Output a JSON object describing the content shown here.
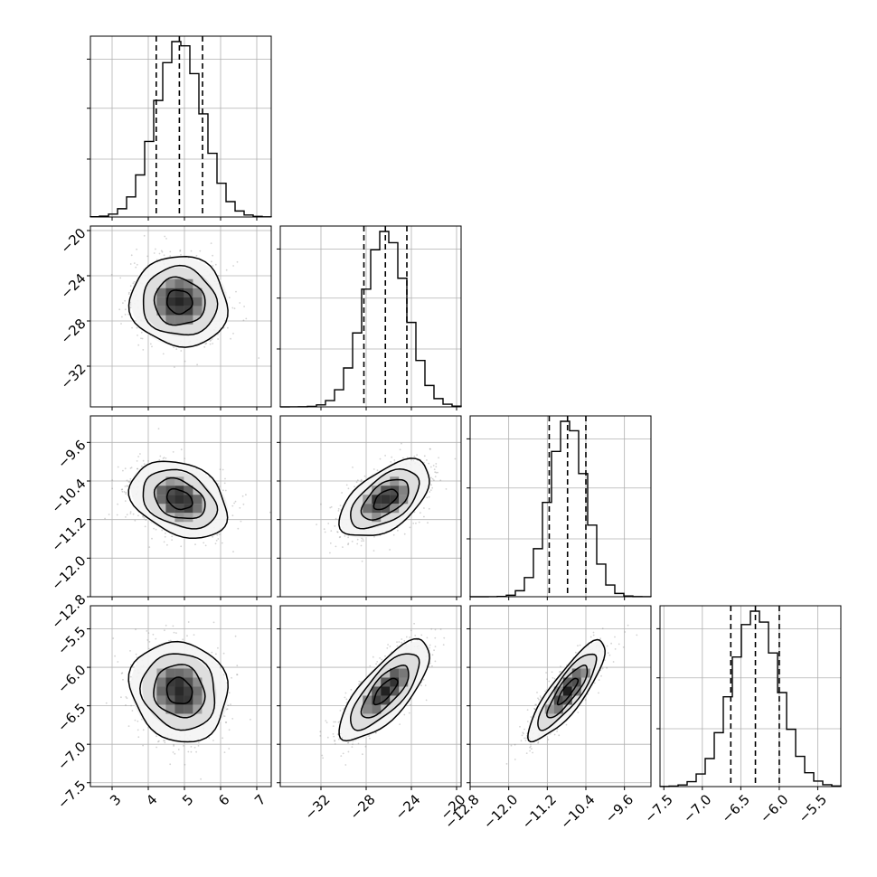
{
  "chart_data": {
    "type": "corner",
    "description_free": true,
    "grid": true,
    "parameters": [
      {
        "ticks": [
          3,
          4,
          5,
          6,
          7
        ],
        "tick_labels": [
          "3",
          "4",
          "5",
          "6",
          "7"
        ],
        "range": [
          2.4,
          7.4
        ],
        "quantiles": [
          4.22,
          4.86,
          5.5
        ],
        "mean": 4.86,
        "sd": 0.64
      },
      {
        "ticks": [
          -32,
          -28,
          -24,
          -20
        ],
        "tick_labels": [
          "−32",
          "−28",
          "−24",
          "−20"
        ],
        "range": [
          -35.6,
          -19.6
        ],
        "quantiles": [
          -28.2,
          -26.3,
          -24.4
        ],
        "mean": -26.3,
        "sd": 1.9
      },
      {
        "ticks": [
          -12.8,
          -12.0,
          -11.2,
          -10.4,
          -9.6
        ],
        "tick_labels": [
          "−12.8",
          "−12.0",
          "−11.2",
          "−10.4",
          "−9.6"
        ],
        "range": [
          -12.8,
          -9.05
        ],
        "quantiles": [
          -11.16,
          -10.78,
          -10.4
        ],
        "mean": -10.78,
        "sd": 0.38
      },
      {
        "ticks": [
          -7.5,
          -7.0,
          -6.5,
          -6.0,
          -5.5
        ],
        "tick_labels": [
          "−7.5",
          "−7.0",
          "−6.5",
          "−6.0",
          "−5.5"
        ],
        "range": [
          -7.55,
          -5.2
        ],
        "quantiles": [
          -6.63,
          -6.31,
          -6.0
        ],
        "mean": -6.31,
        "sd": 0.31
      }
    ],
    "correlations": [
      {
        "i": 1,
        "j": 0,
        "rho": -0.05
      },
      {
        "i": 2,
        "j": 0,
        "rho": -0.3
      },
      {
        "i": 2,
        "j": 1,
        "rho": 0.55
      },
      {
        "i": 3,
        "j": 0,
        "rho": -0.1
      },
      {
        "i": 3,
        "j": 1,
        "rho": 0.75
      },
      {
        "i": 3,
        "j": 2,
        "rho": 0.85
      }
    ],
    "histogram_bins": 20,
    "contour_levels": [
      "0.5 sigma",
      "1 sigma",
      "1.5 sigma",
      "2 sigma"
    ],
    "colors": {
      "axes": "#000000",
      "grid": "#b0b0b0",
      "hist": "#000000",
      "points": "#808080"
    }
  }
}
